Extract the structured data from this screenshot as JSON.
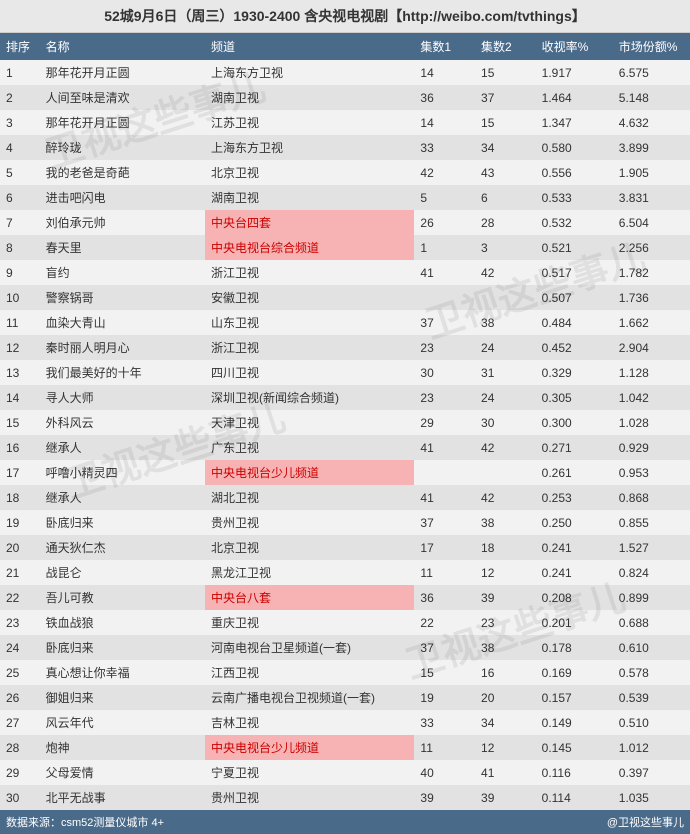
{
  "title": "52城9月6日（周三）1930-2400 含央视电视剧【http://weibo.com/tvthings】",
  "columns": {
    "rank": "排序",
    "name": "名称",
    "channel": "频道",
    "ep1": "集数1",
    "ep2": "集数2",
    "rating": "收视率%",
    "share": "市场份额%"
  },
  "rows": [
    {
      "rank": "1",
      "name": "那年花开月正圆",
      "channel": "上海东方卫视",
      "ep1": "14",
      "ep2": "15",
      "rating": "1.917",
      "share": "6.575",
      "hl": false
    },
    {
      "rank": "2",
      "name": "人间至味是清欢",
      "channel": "湖南卫视",
      "ep1": "36",
      "ep2": "37",
      "rating": "1.464",
      "share": "5.148",
      "hl": false
    },
    {
      "rank": "3",
      "name": "那年花开月正圆",
      "channel": "江苏卫视",
      "ep1": "14",
      "ep2": "15",
      "rating": "1.347",
      "share": "4.632",
      "hl": false
    },
    {
      "rank": "4",
      "name": "醉玲珑",
      "channel": "上海东方卫视",
      "ep1": "33",
      "ep2": "34",
      "rating": "0.580",
      "share": "3.899",
      "hl": false
    },
    {
      "rank": "5",
      "name": "我的老爸是奇葩",
      "channel": "北京卫视",
      "ep1": "42",
      "ep2": "43",
      "rating": "0.556",
      "share": "1.905",
      "hl": false
    },
    {
      "rank": "6",
      "name": "进击吧闪电",
      "channel": "湖南卫视",
      "ep1": "5",
      "ep2": "6",
      "rating": "0.533",
      "share": "3.831",
      "hl": false
    },
    {
      "rank": "7",
      "name": "刘伯承元帅",
      "channel": "中央台四套",
      "ep1": "26",
      "ep2": "28",
      "rating": "0.532",
      "share": "6.504",
      "hl": true
    },
    {
      "rank": "8",
      "name": "春天里",
      "channel": "中央电视台综合频道",
      "ep1": "1",
      "ep2": "3",
      "rating": "0.521",
      "share": "2.256",
      "hl": true
    },
    {
      "rank": "9",
      "name": "盲约",
      "channel": "浙江卫视",
      "ep1": "41",
      "ep2": "42",
      "rating": "0.517",
      "share": "1.782",
      "hl": false
    },
    {
      "rank": "10",
      "name": "警察锅哥",
      "channel": "安徽卫视",
      "ep1": "",
      "ep2": "",
      "rating": "0.507",
      "share": "1.736",
      "hl": false
    },
    {
      "rank": "11",
      "name": "血染大青山",
      "channel": "山东卫视",
      "ep1": "37",
      "ep2": "38",
      "rating": "0.484",
      "share": "1.662",
      "hl": false
    },
    {
      "rank": "12",
      "name": "秦时丽人明月心",
      "channel": "浙江卫视",
      "ep1": "23",
      "ep2": "24",
      "rating": "0.452",
      "share": "2.904",
      "hl": false
    },
    {
      "rank": "13",
      "name": "我们最美好的十年",
      "channel": "四川卫视",
      "ep1": "30",
      "ep2": "31",
      "rating": "0.329",
      "share": "1.128",
      "hl": false
    },
    {
      "rank": "14",
      "name": "寻人大师",
      "channel": "深圳卫视(新闻综合频道)",
      "ep1": "23",
      "ep2": "24",
      "rating": "0.305",
      "share": "1.042",
      "hl": false
    },
    {
      "rank": "15",
      "name": "外科风云",
      "channel": "天津卫视",
      "ep1": "29",
      "ep2": "30",
      "rating": "0.300",
      "share": "1.028",
      "hl": false
    },
    {
      "rank": "16",
      "name": "继承人",
      "channel": "广东卫视",
      "ep1": "41",
      "ep2": "42",
      "rating": "0.271",
      "share": "0.929",
      "hl": false
    },
    {
      "rank": "17",
      "name": "呼噜小精灵四",
      "channel": "中央电视台少儿频道",
      "ep1": "",
      "ep2": "",
      "rating": "0.261",
      "share": "0.953",
      "hl": true
    },
    {
      "rank": "18",
      "name": "继承人",
      "channel": "湖北卫视",
      "ep1": "41",
      "ep2": "42",
      "rating": "0.253",
      "share": "0.868",
      "hl": false
    },
    {
      "rank": "19",
      "name": "卧底归来",
      "channel": "贵州卫视",
      "ep1": "37",
      "ep2": "38",
      "rating": "0.250",
      "share": "0.855",
      "hl": false
    },
    {
      "rank": "20",
      "name": "通天狄仁杰",
      "channel": "北京卫视",
      "ep1": "17",
      "ep2": "18",
      "rating": "0.241",
      "share": "1.527",
      "hl": false
    },
    {
      "rank": "21",
      "name": "战昆仑",
      "channel": "黑龙江卫视",
      "ep1": "11",
      "ep2": "12",
      "rating": "0.241",
      "share": "0.824",
      "hl": false
    },
    {
      "rank": "22",
      "name": "吾儿可教",
      "channel": "中央台八套",
      "ep1": "36",
      "ep2": "39",
      "rating": "0.208",
      "share": "0.899",
      "hl": true
    },
    {
      "rank": "23",
      "name": "铁血战狼",
      "channel": "重庆卫视",
      "ep1": "22",
      "ep2": "23",
      "rating": "0.201",
      "share": "0.688",
      "hl": false
    },
    {
      "rank": "24",
      "name": "卧底归来",
      "channel": "河南电视台卫星频道(一套)",
      "ep1": "37",
      "ep2": "38",
      "rating": "0.178",
      "share": "0.610",
      "hl": false
    },
    {
      "rank": "25",
      "name": "真心想让你幸福",
      "channel": "江西卫视",
      "ep1": "15",
      "ep2": "16",
      "rating": "0.169",
      "share": "0.578",
      "hl": false
    },
    {
      "rank": "26",
      "name": "御姐归来",
      "channel": "云南广播电视台卫视频道(一套)",
      "ep1": "19",
      "ep2": "20",
      "rating": "0.157",
      "share": "0.539",
      "hl": false
    },
    {
      "rank": "27",
      "name": "风云年代",
      "channel": "吉林卫视",
      "ep1": "33",
      "ep2": "34",
      "rating": "0.149",
      "share": "0.510",
      "hl": false
    },
    {
      "rank": "28",
      "name": "炮神",
      "channel": "中央电视台少儿频道",
      "ep1": "11",
      "ep2": "12",
      "rating": "0.145",
      "share": "1.012",
      "hl": true
    },
    {
      "rank": "29",
      "name": "父母爱情",
      "channel": "宁夏卫视",
      "ep1": "40",
      "ep2": "41",
      "rating": "0.116",
      "share": "0.397",
      "hl": false
    },
    {
      "rank": "30",
      "name": "北平无战事",
      "channel": "贵州卫视",
      "ep1": "39",
      "ep2": "39",
      "rating": "0.114",
      "share": "1.035",
      "hl": false
    }
  ],
  "footer": {
    "left": "数据来源：csm52测量仪城市 4+",
    "right": "@卫视这些事儿"
  },
  "watermark_text": "卫视这些事儿",
  "colors": {
    "header_bg": "#4a6a8a",
    "header_fg": "#ffffff",
    "row_odd": "#f2f2f2",
    "row_even": "#e2e2e2",
    "highlight_bg": "#f7b3b3",
    "highlight_fg": "#c00000",
    "title_bg": "#e8e8e8"
  }
}
